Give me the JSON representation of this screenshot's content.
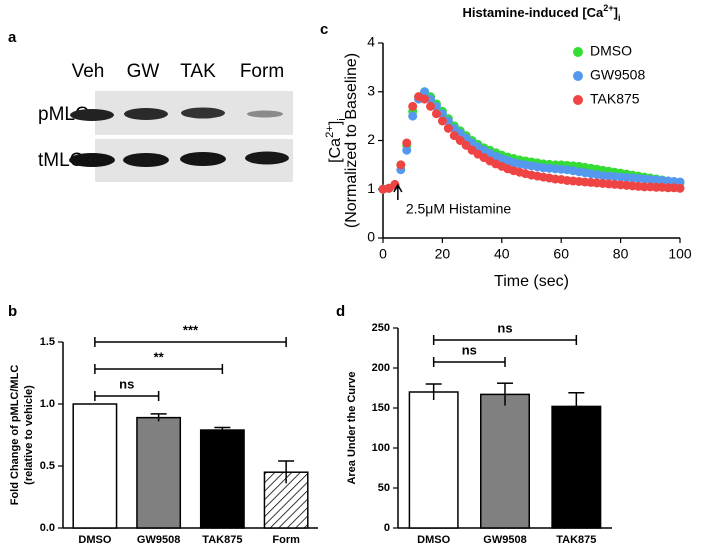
{
  "blot": {
    "panel_label": "a",
    "lanes": [
      "Veh",
      "GW",
      "TAK",
      "Form"
    ],
    "rows": [
      "pMLC",
      "tMLC"
    ]
  },
  "chart_data": [
    {
      "type": "bar",
      "panel_label": "b",
      "y_label": [
        "Fold Change of pMLC/MLC",
        "(relative to vehicle)"
      ],
      "categories": [
        "DMSO",
        "GW9508",
        "TAK875",
        "Form"
      ],
      "values": [
        1.0,
        0.89,
        0.79,
        0.45
      ],
      "errors": [
        0,
        0.03,
        0.02,
        0.09
      ],
      "fills": [
        "#ffffff",
        "#808080",
        "#000000",
        "#ffffff"
      ],
      "patterns": [
        null,
        null,
        null,
        "hatch"
      ],
      "ylim": [
        0,
        1.5
      ],
      "yticks": [
        {
          "value": 0,
          "label": "0.0"
        },
        {
          "value": 0.5,
          "label": "0.5"
        },
        {
          "value": 1,
          "label": "1.0"
        },
        {
          "value": 1.5,
          "label": "1.5"
        }
      ],
      "annotations": [
        {
          "text": "ns",
          "from": "DMSO",
          "to": "GW9508"
        },
        {
          "text": "**",
          "from": "DMSO",
          "to": "TAK875"
        },
        {
          "text": "***",
          "from": "DMSO",
          "to": "Form"
        }
      ]
    },
    {
      "type": "scatter",
      "panel_label": "c",
      "title": [
        "Histamine-induced [Ca",
        "2+",
        "]",
        "i"
      ],
      "y_label": [
        "[Ca",
        "2+",
        "]",
        "i"
      ],
      "y_label_2": "(Normalized to Baseline)",
      "x_label": "Time (sec)",
      "x": [
        0,
        2,
        4,
        6,
        8,
        10,
        12,
        14,
        16,
        18,
        20,
        22,
        24,
        26,
        28,
        30,
        32,
        34,
        36,
        38,
        40,
        42,
        44,
        46,
        48,
        50,
        52,
        54,
        56,
        58,
        60,
        62,
        64,
        66,
        68,
        70,
        72,
        74,
        76,
        78,
        80,
        82,
        84,
        86,
        88,
        90,
        92,
        94,
        96,
        98,
        100
      ],
      "series": [
        {
          "name": "DMSO",
          "color": "#33dd33",
          "values": [
            1.0,
            1.02,
            1.08,
            1.5,
            1.9,
            2.6,
            2.9,
            3.0,
            2.9,
            2.75,
            2.6,
            2.45,
            2.3,
            2.2,
            2.1,
            2.0,
            1.92,
            1.85,
            1.8,
            1.75,
            1.7,
            1.66,
            1.63,
            1.6,
            1.58,
            1.56,
            1.54,
            1.52,
            1.51,
            1.5,
            1.5,
            1.49,
            1.48,
            1.47,
            1.45,
            1.43,
            1.41,
            1.39,
            1.37,
            1.35,
            1.33,
            1.31,
            1.29,
            1.27,
            1.25,
            1.23,
            1.21,
            1.19,
            1.17,
            1.15,
            1.13
          ]
        },
        {
          "name": "GW9508",
          "color": "#5599ee",
          "values": [
            1.0,
            1.02,
            1.08,
            1.4,
            1.8,
            2.5,
            2.85,
            3.0,
            2.85,
            2.7,
            2.55,
            2.4,
            2.25,
            2.15,
            2.05,
            1.95,
            1.87,
            1.8,
            1.74,
            1.68,
            1.63,
            1.59,
            1.55,
            1.52,
            1.5,
            1.48,
            1.46,
            1.44,
            1.43,
            1.42,
            1.41,
            1.4,
            1.38,
            1.36,
            1.34,
            1.32,
            1.3,
            1.28,
            1.27,
            1.26,
            1.25,
            1.24,
            1.23,
            1.22,
            1.21,
            1.2,
            1.19,
            1.18,
            1.17,
            1.16,
            1.15
          ]
        },
        {
          "name": "TAK875",
          "color": "#ee4444",
          "values": [
            1.0,
            1.02,
            1.1,
            1.5,
            1.95,
            2.7,
            2.9,
            2.85,
            2.7,
            2.55,
            2.4,
            2.25,
            2.1,
            2.0,
            1.9,
            1.8,
            1.72,
            1.65,
            1.58,
            1.52,
            1.47,
            1.42,
            1.38,
            1.35,
            1.32,
            1.29,
            1.27,
            1.25,
            1.23,
            1.21,
            1.2,
            1.18,
            1.17,
            1.16,
            1.15,
            1.14,
            1.13,
            1.12,
            1.11,
            1.1,
            1.09,
            1.08,
            1.07,
            1.06,
            1.05,
            1.05,
            1.04,
            1.04,
            1.03,
            1.03,
            1.02
          ]
        }
      ],
      "annotations": [
        {
          "text": "2.5μM Histamine",
          "x": 5
        }
      ],
      "xlim": [
        0,
        100
      ],
      "xticks": [
        0,
        20,
        40,
        60,
        80,
        100
      ],
      "ylim": [
        0,
        4
      ],
      "yticks": [
        0,
        1,
        2,
        3,
        4
      ],
      "legend": "upper right"
    },
    {
      "type": "bar",
      "panel_label": "d",
      "y_label": [
        "Area Under the Curve"
      ],
      "categories": [
        "DMSO",
        "GW9508",
        "TAK875"
      ],
      "values": [
        170,
        167,
        152
      ],
      "errors": [
        10,
        14,
        17
      ],
      "fills": [
        "#ffffff",
        "#808080",
        "#000000"
      ],
      "patterns": [
        null,
        null,
        null
      ],
      "ylim": [
        0,
        250
      ],
      "yticks": [
        0,
        50,
        100,
        150,
        200,
        250
      ],
      "annotations": [
        {
          "text": "ns",
          "from": "DMSO",
          "to": "GW9508"
        },
        {
          "text": "ns",
          "from": "DMSO",
          "to": "TAK875"
        }
      ]
    }
  ]
}
